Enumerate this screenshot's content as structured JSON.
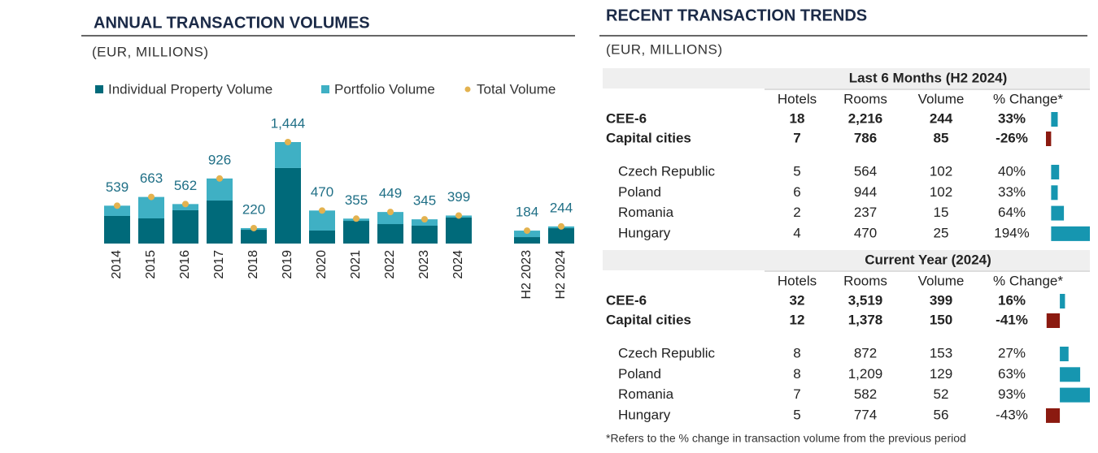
{
  "chart_data": {
    "type": "stacked-bar",
    "title": "ANNUAL TRANSACTION VOLUMES",
    "subtitle": "(EUR, MILLIONS)",
    "categories": [
      "2014",
      "2015",
      "2016",
      "2017",
      "2018",
      "2019",
      "2020",
      "2021",
      "2022",
      "2023",
      "2024",
      null,
      "H2 2023",
      "H2 2024"
    ],
    "series": [
      {
        "name": "Individual Property Volume",
        "color": "#006a7a",
        "values": [
          393,
          358,
          474,
          612,
          196,
          1075,
          185,
          323,
          277,
          254,
          370,
          null,
          92,
          219
        ]
      },
      {
        "name": "Portfolio Volume",
        "color": "#3fb0c4",
        "values": [
          146,
          305,
          88,
          314,
          24,
          369,
          285,
          32,
          172,
          91,
          29,
          null,
          92,
          25
        ]
      },
      {
        "name": "Total Volume",
        "color": "#e3b24f",
        "values": [
          539,
          663,
          562,
          926,
          220,
          1444,
          470,
          355,
          449,
          345,
          399,
          null,
          184,
          244
        ],
        "value_labels": [
          "539",
          "663",
          "562",
          "926",
          "220",
          "1,444",
          "470",
          "355",
          "449",
          "345",
          "399",
          null,
          "184",
          "244"
        ]
      }
    ]
  },
  "table": {
    "title": "RECENT TRANSACTION TRENDS",
    "subtitle": "(EUR, MILLIONS)",
    "columns": [
      "Hotels",
      "Rooms",
      "Volume",
      "% Change*"
    ],
    "positive_color": "#1696b0",
    "negative_color": "#8b1a10",
    "sections": [
      {
        "title": "Last 6 Months (H2 2024)",
        "rows": [
          {
            "name": "CEE-6",
            "hotels": "18",
            "rooms": "2,216",
            "volume": "244",
            "change": 33,
            "change_label": "33%"
          },
          {
            "name": "Capital cities",
            "hotels": "7",
            "rooms": "786",
            "volume": "85",
            "change": -26,
            "change_label": "-26%"
          },
          {
            "name": "Czech Republic",
            "hotels": "5",
            "rooms": "564",
            "volume": "102",
            "change": 40,
            "change_label": "40%"
          },
          {
            "name": "Poland",
            "hotels": "6",
            "rooms": "944",
            "volume": "102",
            "change": 33,
            "change_label": "33%"
          },
          {
            "name": "Romania",
            "hotels": "2",
            "rooms": "237",
            "volume": "15",
            "change": 64,
            "change_label": "64%"
          },
          {
            "name": "Hungary",
            "hotels": "4",
            "rooms": "470",
            "volume": "25",
            "change": 194,
            "change_label": "194%"
          }
        ]
      },
      {
        "title": "Current Year (2024)",
        "rows": [
          {
            "name": "CEE-6",
            "hotels": "32",
            "rooms": "3,519",
            "volume": "399",
            "change": 16,
            "change_label": "16%"
          },
          {
            "name": "Capital cities",
            "hotels": "12",
            "rooms": "1,378",
            "volume": "150",
            "change": -41,
            "change_label": "-41%"
          },
          {
            "name": "Czech Republic",
            "hotels": "8",
            "rooms": "872",
            "volume": "153",
            "change": 27,
            "change_label": "27%"
          },
          {
            "name": "Poland",
            "hotels": "8",
            "rooms": "1,209",
            "volume": "129",
            "change": 63,
            "change_label": "63%"
          },
          {
            "name": "Romania",
            "hotels": "7",
            "rooms": "582",
            "volume": "52",
            "change": 93,
            "change_label": "93%"
          },
          {
            "name": "Hungary",
            "hotels": "5",
            "rooms": "774",
            "volume": "56",
            "change": -43,
            "change_label": "-43%"
          }
        ]
      }
    ],
    "footnote": "*Refers to the % change in transaction volume from the previous period"
  }
}
